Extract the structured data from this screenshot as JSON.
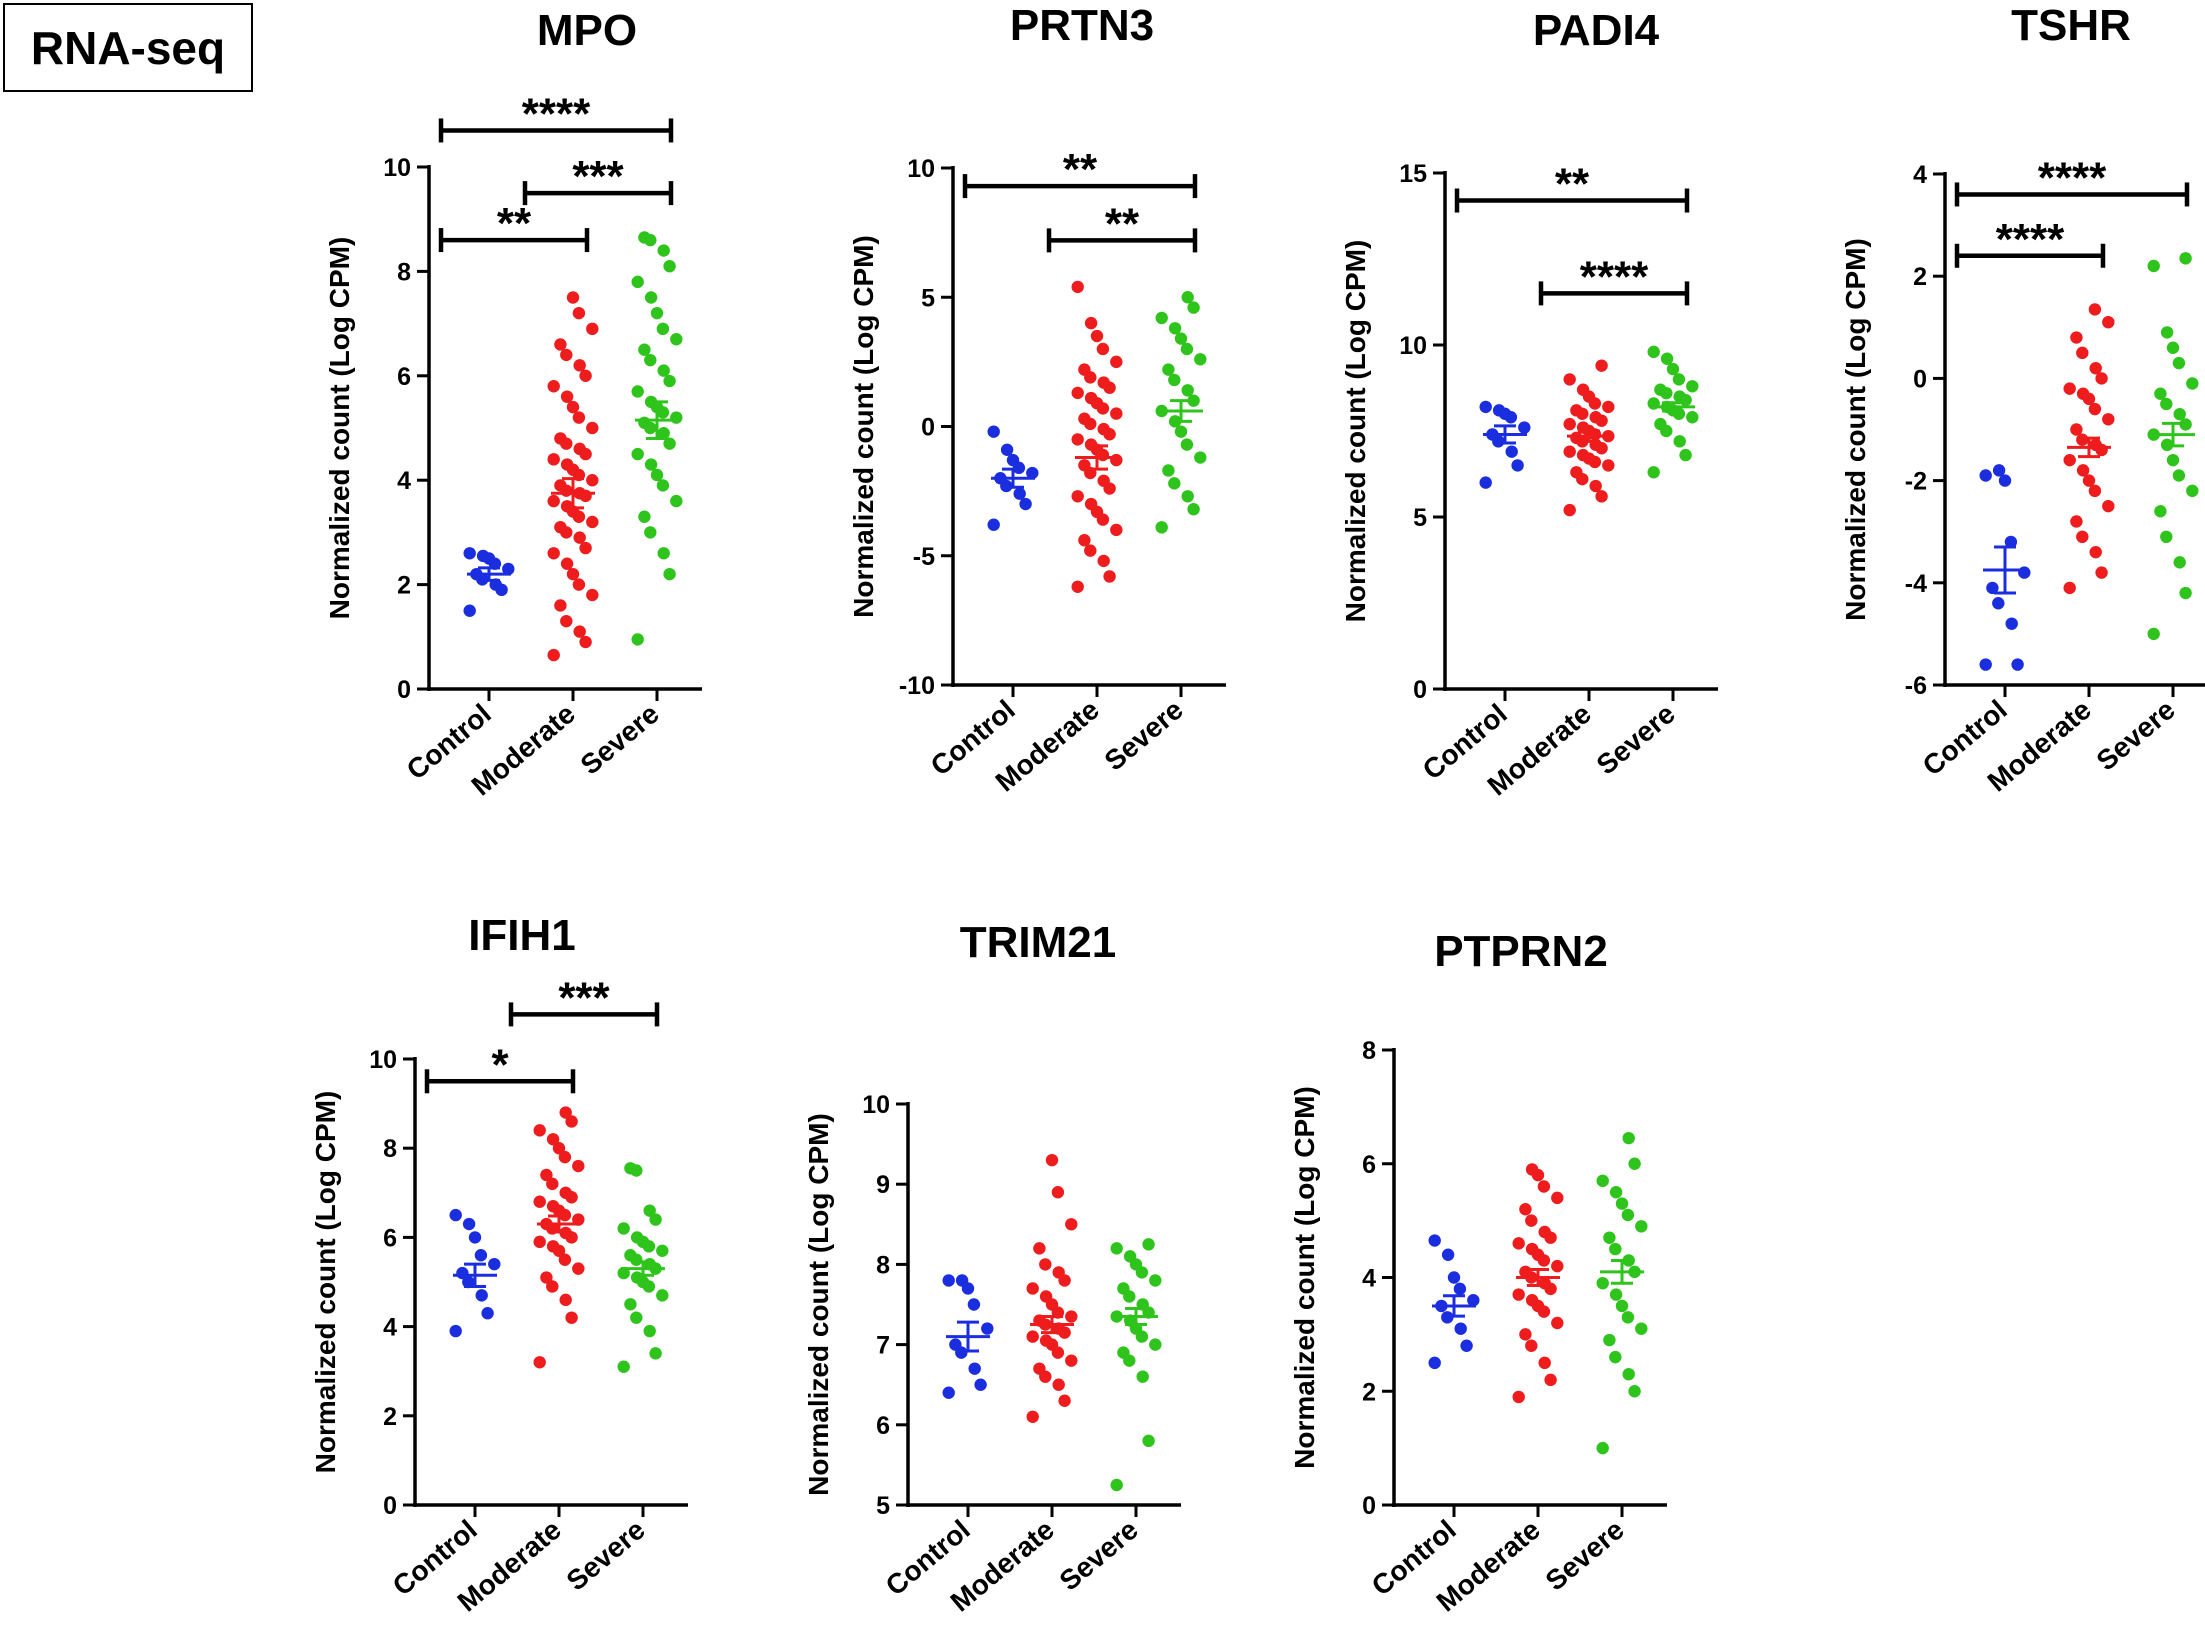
{
  "label_box": "RNA-seq",
  "colors": {
    "Control": "#1a2ee0",
    "Moderate": "#ee1c1c",
    "Severe": "#2ec41c",
    "axis": "#000000"
  },
  "chart_data": [
    {
      "type": "scatter",
      "title": "MPO",
      "ylabel": "Normalized count (Log CPM)",
      "categories": [
        "Control",
        "Moderate",
        "Severe"
      ],
      "yticks": [
        0,
        2,
        4,
        6,
        8,
        10
      ],
      "ylim": [
        0,
        10
      ],
      "series": [
        {
          "name": "Control",
          "mean": 2.2,
          "sem": 0.12,
          "values": [
            1.5,
            1.9,
            2.0,
            2.1,
            2.2,
            2.3,
            2.4,
            2.5,
            2.55,
            2.6
          ]
        },
        {
          "name": "Moderate",
          "mean": 3.75,
          "sem": 0.28,
          "values": [
            0.65,
            0.9,
            1.1,
            1.3,
            1.6,
            1.8,
            2.0,
            2.2,
            2.4,
            2.6,
            2.7,
            2.9,
            3.0,
            3.1,
            3.2,
            3.3,
            3.4,
            3.5,
            3.6,
            3.7,
            3.75,
            3.8,
            3.9,
            4.0,
            4.1,
            4.2,
            4.3,
            4.4,
            4.5,
            4.6,
            4.7,
            4.8,
            5.0,
            5.2,
            5.4,
            5.6,
            5.8,
            6.0,
            6.2,
            6.4,
            6.6,
            6.9,
            7.2,
            7.5
          ]
        },
        {
          "name": "Severe",
          "mean": 5.15,
          "sem": 0.35,
          "values": [
            0.95,
            2.2,
            2.6,
            3.0,
            3.3,
            3.6,
            3.9,
            4.1,
            4.3,
            4.5,
            4.7,
            4.9,
            5.0,
            5.1,
            5.2,
            5.3,
            5.4,
            5.5,
            5.7,
            5.9,
            6.1,
            6.3,
            6.5,
            6.7,
            6.9,
            7.2,
            7.5,
            7.8,
            8.1,
            8.4,
            8.6,
            8.65
          ]
        }
      ],
      "comparisons": [
        {
          "from": "Control",
          "to": "Moderate",
          "label": "**",
          "y": 8.6
        },
        {
          "from": "Moderate",
          "to": "Severe",
          "label": "***",
          "y": 9.5
        },
        {
          "from": "Control",
          "to": "Severe",
          "label": "****",
          "y": 10.7
        }
      ]
    },
    {
      "type": "scatter",
      "title": "PRTN3",
      "ylabel": "Normalized count (Log CPM)",
      "categories": [
        "Control",
        "Moderate",
        "Severe"
      ],
      "yticks": [
        -10,
        -5,
        0,
        5,
        10
      ],
      "ylim": [
        -10,
        10
      ],
      "series": [
        {
          "name": "Control",
          "mean": -2.0,
          "sem": 0.35,
          "values": [
            -3.8,
            -3.0,
            -2.6,
            -2.3,
            -2.0,
            -1.8,
            -1.6,
            -1.3,
            -0.9,
            -0.2
          ]
        },
        {
          "name": "Moderate",
          "mean": -1.2,
          "sem": 0.45,
          "values": [
            -6.2,
            -5.8,
            -5.2,
            -4.8,
            -4.4,
            -4.0,
            -3.6,
            -3.3,
            -3.0,
            -2.7,
            -2.4,
            -2.1,
            -1.8,
            -1.5,
            -1.3,
            -1.1,
            -0.9,
            -0.7,
            -0.5,
            -0.3,
            -0.1,
            0.1,
            0.3,
            0.5,
            0.7,
            0.9,
            1.1,
            1.3,
            1.5,
            1.7,
            1.9,
            2.2,
            2.5,
            3.0,
            3.5,
            4.0,
            5.4
          ]
        },
        {
          "name": "Severe",
          "mean": 0.6,
          "sem": 0.4,
          "values": [
            -3.9,
            -3.2,
            -2.7,
            -2.2,
            -1.7,
            -1.2,
            -0.7,
            -0.2,
            0.2,
            0.6,
            1.0,
            1.4,
            1.8,
            2.2,
            2.6,
            3.0,
            3.4,
            3.8,
            4.2,
            4.6,
            5.0
          ]
        }
      ],
      "comparisons": [
        {
          "from": "Moderate",
          "to": "Severe",
          "label": "**",
          "y": 7.2
        },
        {
          "from": "Control",
          "to": "Severe",
          "label": "**",
          "y": 9.3
        }
      ]
    },
    {
      "type": "scatter",
      "title": "PADI4",
      "ylabel": "Normalized count (Log CPM)",
      "categories": [
        "Control",
        "Moderate",
        "Severe"
      ],
      "yticks": [
        0,
        5,
        10,
        15
      ],
      "ylim": [
        0,
        15
      ],
      "series": [
        {
          "name": "Control",
          "mean": 7.4,
          "sem": 0.25,
          "values": [
            6.0,
            6.5,
            6.9,
            7.2,
            7.4,
            7.6,
            7.9,
            8.0,
            8.1,
            8.2
          ]
        },
        {
          "name": "Moderate",
          "mean": 7.35,
          "sem": 0.15,
          "values": [
            5.2,
            5.6,
            5.9,
            6.1,
            6.3,
            6.5,
            6.6,
            6.7,
            6.8,
            6.9,
            7.0,
            7.1,
            7.2,
            7.3,
            7.35,
            7.4,
            7.5,
            7.6,
            7.7,
            7.8,
            7.9,
            8.0,
            8.1,
            8.2,
            8.3,
            8.5,
            8.7,
            9.0,
            9.4
          ]
        },
        {
          "name": "Severe",
          "mean": 8.2,
          "sem": 0.12,
          "values": [
            6.3,
            6.8,
            7.2,
            7.5,
            7.7,
            7.9,
            8.0,
            8.1,
            8.2,
            8.3,
            8.4,
            8.5,
            8.6,
            8.7,
            8.8,
            9.0,
            9.3,
            9.6,
            9.8
          ]
        }
      ],
      "comparisons": [
        {
          "from": "Moderate",
          "to": "Severe",
          "label": "****",
          "y": 11.5
        },
        {
          "from": "Control",
          "to": "Severe",
          "label": "**",
          "y": 14.2
        }
      ]
    },
    {
      "type": "scatter",
      "title": "TSHR",
      "ylabel": "Normalized count (Log CPM)",
      "categories": [
        "Control",
        "Moderate",
        "Severe"
      ],
      "yticks": [
        -6,
        -4,
        -2,
        0,
        2,
        4
      ],
      "ylim": [
        -6,
        4
      ],
      "series": [
        {
          "name": "Control",
          "mean": -3.75,
          "sem": 0.45,
          "values": [
            -5.6,
            -5.6,
            -4.8,
            -4.4,
            -4.1,
            -3.8,
            -3.2,
            -2.0,
            -1.8,
            -1.9
          ]
        },
        {
          "name": "Moderate",
          "mean": -1.35,
          "sem": 0.18,
          "values": [
            -4.1,
            -3.8,
            -3.4,
            -3.1,
            -2.8,
            -2.5,
            -2.2,
            -2.0,
            -1.8,
            -1.6,
            -1.4,
            -1.3,
            -1.2,
            -1.0,
            -0.8,
            -0.6,
            -0.4,
            -0.3,
            -0.2,
            0.0,
            0.2,
            0.5,
            0.8,
            1.1,
            1.35
          ]
        },
        {
          "name": "Severe",
          "mean": -1.1,
          "sem": 0.22,
          "values": [
            -5.0,
            -4.2,
            -3.6,
            -3.1,
            -2.6,
            -2.2,
            -1.9,
            -1.6,
            -1.3,
            -1.1,
            -0.9,
            -0.7,
            -0.5,
            -0.3,
            -0.1,
            0.3,
            0.6,
            0.9,
            2.2,
            2.35
          ]
        }
      ],
      "comparisons": [
        {
          "from": "Control",
          "to": "Moderate",
          "label": "****",
          "y": 2.4
        },
        {
          "from": "Control",
          "to": "Severe",
          "label": "****",
          "y": 3.6
        }
      ]
    },
    {
      "type": "scatter",
      "title": "IFIH1",
      "ylabel": "Normalized count (Log CPM)",
      "categories": [
        "Control",
        "Moderate",
        "Severe"
      ],
      "yticks": [
        0,
        2,
        4,
        6,
        8,
        10
      ],
      "ylim": [
        0,
        10
      ],
      "series": [
        {
          "name": "Control",
          "mean": 5.15,
          "sem": 0.25,
          "values": [
            3.9,
            4.3,
            4.7,
            5.0,
            5.2,
            5.4,
            5.6,
            6.0,
            6.3,
            6.5
          ]
        },
        {
          "name": "Moderate",
          "mean": 6.3,
          "sem": 0.18,
          "values": [
            3.2,
            4.2,
            4.6,
            4.9,
            5.1,
            5.3,
            5.5,
            5.7,
            5.8,
            5.9,
            6.0,
            6.1,
            6.2,
            6.3,
            6.4,
            6.5,
            6.6,
            6.7,
            6.8,
            6.9,
            7.0,
            7.2,
            7.4,
            7.6,
            7.8,
            8.0,
            8.2,
            8.4,
            8.6,
            8.8
          ]
        },
        {
          "name": "Severe",
          "mean": 5.3,
          "sem": 0.15,
          "values": [
            3.1,
            3.4,
            3.9,
            4.2,
            4.5,
            4.7,
            4.9,
            5.0,
            5.1,
            5.2,
            5.3,
            5.4,
            5.5,
            5.6,
            5.7,
            5.8,
            5.9,
            6.0,
            6.2,
            6.4,
            6.6,
            7.5,
            7.55
          ]
        }
      ],
      "comparisons": [
        {
          "from": "Control",
          "to": "Moderate",
          "label": "*",
          "y": 9.5
        },
        {
          "from": "Moderate",
          "to": "Severe",
          "label": "***",
          "y": 11.0
        }
      ]
    },
    {
      "type": "scatter",
      "title": "TRIM21",
      "ylabel": "Normalized count (Log CPM)",
      "categories": [
        "Control",
        "Moderate",
        "Severe"
      ],
      "yticks": [
        5,
        6,
        7,
        8,
        9,
        10
      ],
      "ylim": [
        5,
        10
      ],
      "series": [
        {
          "name": "Control",
          "mean": 7.1,
          "sem": 0.18,
          "values": [
            6.4,
            6.5,
            6.7,
            6.9,
            7.0,
            7.2,
            7.5,
            7.7,
            7.8,
            7.8
          ]
        },
        {
          "name": "Moderate",
          "mean": 7.25,
          "sem": 0.1,
          "values": [
            6.1,
            6.3,
            6.5,
            6.6,
            6.7,
            6.8,
            6.9,
            7.0,
            7.05,
            7.1,
            7.15,
            7.2,
            7.25,
            7.3,
            7.35,
            7.4,
            7.5,
            7.6,
            7.7,
            7.8,
            7.9,
            8.0,
            8.2,
            8.5,
            8.9,
            9.3
          ]
        },
        {
          "name": "Severe",
          "mean": 7.35,
          "sem": 0.1,
          "values": [
            5.25,
            5.8,
            6.6,
            6.8,
            6.9,
            7.0,
            7.1,
            7.2,
            7.3,
            7.35,
            7.4,
            7.5,
            7.6,
            7.7,
            7.8,
            7.9,
            8.0,
            8.1,
            8.2,
            8.25
          ]
        }
      ],
      "comparisons": []
    },
    {
      "type": "scatter",
      "title": "PTPRN2",
      "ylabel": "Normalized count (Log CPM)",
      "categories": [
        "Control",
        "Moderate",
        "Severe"
      ],
      "yticks": [
        0,
        2,
        4,
        6,
        8
      ],
      "ylim": [
        0,
        8
      ],
      "series": [
        {
          "name": "Control",
          "mean": 3.5,
          "sem": 0.18,
          "values": [
            2.5,
            2.8,
            3.1,
            3.3,
            3.5,
            3.6,
            3.8,
            4.0,
            4.4,
            4.65
          ]
        },
        {
          "name": "Moderate",
          "mean": 4.0,
          "sem": 0.14,
          "values": [
            1.9,
            2.2,
            2.5,
            2.8,
            3.0,
            3.2,
            3.4,
            3.5,
            3.6,
            3.7,
            3.8,
            3.9,
            4.0,
            4.1,
            4.2,
            4.3,
            4.4,
            4.5,
            4.6,
            4.7,
            4.8,
            5.0,
            5.2,
            5.4,
            5.6,
            5.8,
            5.9
          ]
        },
        {
          "name": "Severe",
          "mean": 4.1,
          "sem": 0.2,
          "values": [
            1.0,
            2.0,
            2.3,
            2.6,
            2.9,
            3.1,
            3.3,
            3.5,
            3.7,
            3.9,
            4.1,
            4.3,
            4.5,
            4.7,
            4.9,
            5.1,
            5.3,
            5.5,
            5.7,
            6.0,
            6.45
          ]
        }
      ],
      "comparisons": []
    }
  ]
}
